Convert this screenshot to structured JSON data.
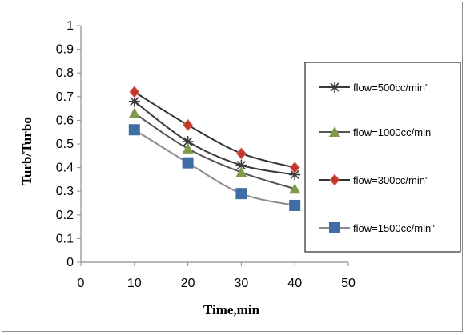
{
  "chart_data": {
    "type": "line",
    "title": "",
    "xlabel": "Time,min",
    "ylabel": "Turb/Turbo",
    "xlim": [
      0,
      50
    ],
    "ylim": [
      0,
      1
    ],
    "xticks": [
      0,
      10,
      20,
      30,
      40,
      50
    ],
    "yticks": [
      0,
      0.1,
      0.2,
      0.3,
      0.4,
      0.5,
      0.6,
      0.7,
      0.8,
      0.9,
      1
    ],
    "ytick_labels": [
      "0",
      "0.1",
      "0.2",
      "0.3",
      "0.4",
      "0.5",
      "0.6",
      "0.7",
      "0.8",
      "0.9",
      "1"
    ],
    "grid": false,
    "legend_position": "right",
    "x": [
      10,
      20,
      30,
      40
    ],
    "series": [
      {
        "name": "flow=500cc/min\"",
        "values": [
          0.68,
          0.51,
          0.41,
          0.37
        ],
        "color": "#3a3a3a",
        "marker": "asterisk"
      },
      {
        "name": "flow=1000cc/min",
        "values": [
          0.63,
          0.48,
          0.38,
          0.31
        ],
        "color": "#7f9a48",
        "marker": "triangle"
      },
      {
        "name": "flow=300cc/min\"",
        "values": [
          0.72,
          0.58,
          0.46,
          0.4
        ],
        "color": "#c0392b",
        "marker": "diamond"
      },
      {
        "name": "flow=1500cc/min\"",
        "values": [
          0.56,
          0.42,
          0.29,
          0.24
        ],
        "color": "#3f6ea6",
        "marker": "square"
      }
    ],
    "line_colors": [
      "#3a3a3a",
      "#555555",
      "#333333",
      "#8c8c8c"
    ]
  }
}
